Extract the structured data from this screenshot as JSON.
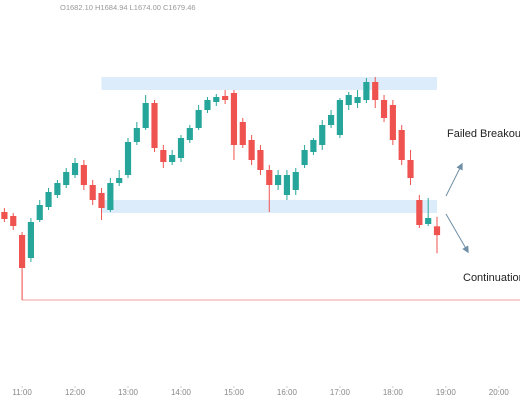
{
  "chart_data": {
    "type": "candlestick",
    "header": "O1682.10 H1684.94 L1674.00 C1679.46",
    "x": [
      640,
      650,
      660,
      670,
      680,
      690,
      700,
      710,
      720,
      730,
      740,
      750,
      760,
      770,
      780,
      790,
      800,
      810,
      820,
      830,
      840,
      850,
      860,
      870,
      880,
      890,
      900,
      910,
      920,
      930,
      940,
      950,
      960,
      970,
      980,
      990,
      1000,
      1010,
      1020,
      1030,
      1040,
      1050,
      1060,
      1070,
      1080,
      1090,
      1100,
      1110,
      1120,
      1130
    ],
    "open": [
      1686.4,
      1685.2,
      1679.5,
      1672.6,
      1684.0,
      1687.9,
      1691.5,
      1694.5,
      1697.5,
      1700.5,
      1694.5,
      1692.1,
      1687.0,
      1695.1,
      1697.5,
      1707.4,
      1711.6,
      1719.1,
      1705.0,
      1701.4,
      1702.6,
      1708.0,
      1711.6,
      1717.0,
      1719.4,
      1721.2,
      1722.1,
      1713.4,
      1708.0,
      1705.0,
      1699.0,
      1694.5,
      1691.5,
      1693.0,
      1700.5,
      1704.4,
      1706.5,
      1712.5,
      1709.5,
      1718.5,
      1719.1,
      1720.0,
      1725.4,
      1720.0,
      1718.5,
      1711.0,
      1702.0,
      1690.0,
      1682.8,
      1682.1
    ],
    "high": [
      1687.6,
      1686.1,
      1680.4,
      1684.6,
      1690.0,
      1693.6,
      1696.0,
      1699.6,
      1702.6,
      1702.0,
      1696.0,
      1693.6,
      1696.6,
      1699.0,
      1708.6,
      1713.4,
      1721.5,
      1720.0,
      1706.5,
      1705.0,
      1709.5,
      1712.5,
      1718.5,
      1720.9,
      1721.8,
      1723.0,
      1723.0,
      1714.6,
      1709.5,
      1706.5,
      1700.5,
      1699.0,
      1699.0,
      1699.6,
      1706.5,
      1708.6,
      1714.0,
      1717.0,
      1720.6,
      1722.4,
      1723.0,
      1726.6,
      1726.9,
      1721.5,
      1720.0,
      1712.5,
      1705.0,
      1691.5,
      1690.6,
      1684.94
    ],
    "low": [
      1683.4,
      1681.0,
      1660.0,
      1671.4,
      1683.4,
      1687.0,
      1690.6,
      1693.6,
      1696.6,
      1693.0,
      1688.5,
      1684.0,
      1686.4,
      1694.2,
      1696.6,
      1706.5,
      1711.0,
      1704.4,
      1699.6,
      1700.5,
      1701.4,
      1707.1,
      1711.0,
      1716.1,
      1718.2,
      1718.8,
      1702.0,
      1705.6,
      1700.5,
      1697.5,
      1686.4,
      1693.0,
      1690.0,
      1691.5,
      1699.6,
      1703.5,
      1705.0,
      1711.6,
      1708.6,
      1717.0,
      1717.6,
      1719.1,
      1717.6,
      1713.4,
      1706.5,
      1700.5,
      1694.5,
      1681.6,
      1682.2,
      1674.0
    ],
    "close": [
      1684.3,
      1682.2,
      1669.6,
      1683.4,
      1688.5,
      1692.4,
      1695.1,
      1698.4,
      1701.1,
      1694.5,
      1690.0,
      1687.6,
      1695.1,
      1696.6,
      1707.4,
      1711.6,
      1719.1,
      1705.6,
      1701.4,
      1703.5,
      1708.6,
      1711.6,
      1717.0,
      1720.0,
      1720.9,
      1720.0,
      1706.5,
      1706.5,
      1702.0,
      1699.0,
      1694.5,
      1697.5,
      1697.5,
      1698.4,
      1705.0,
      1708.0,
      1712.5,
      1715.5,
      1720.0,
      1721.5,
      1720.9,
      1725.4,
      1720.0,
      1714.6,
      1708.0,
      1702.0,
      1696.6,
      1682.5,
      1684.6,
      1679.46
    ],
    "up_color": "#26a69a",
    "down_color": "#ef5350",
    "zone_color": "#dcecfb",
    "level_color": "#f2a0a0",
    "zones": [
      {
        "x": [
          750,
          1130
        ],
        "y": [
          1723.0,
          1726.9
        ]
      },
      {
        "x": [
          750,
          1130
        ],
        "y": [
          1686.1,
          1690.0
        ]
      }
    ],
    "level": {
      "x": 660,
      "y": 1660.0
    },
    "xlim": [
      635,
      1224
    ],
    "ylim": [
      1630,
      1750
    ],
    "xticks": [
      {
        "value": 660,
        "label": "11:00"
      },
      {
        "value": 720,
        "label": "12:00"
      },
      {
        "value": 780,
        "label": "13:00"
      },
      {
        "value": 840,
        "label": "14:00"
      },
      {
        "value": 900,
        "label": "15:00"
      },
      {
        "value": 960,
        "label": "16:00"
      },
      {
        "value": 1020,
        "label": "17:00"
      },
      {
        "value": 1080,
        "label": "18:00"
      },
      {
        "value": 1140,
        "label": "19:00"
      },
      {
        "value": 1200,
        "label": "20:00"
      }
    ],
    "annotations": [
      "Failed Breakout",
      "Continuation"
    ]
  }
}
